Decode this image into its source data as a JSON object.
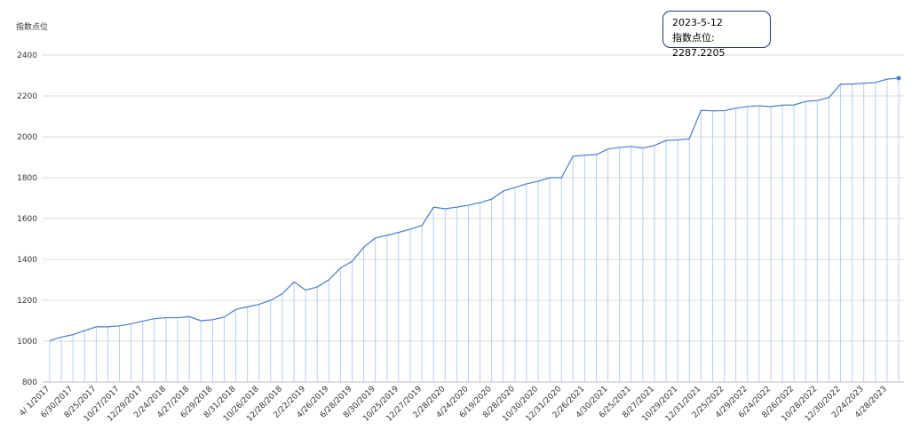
{
  "chart_data": {
    "type": "line",
    "y_label": "指数点位",
    "categories": [
      "4/ 1/2017",
      null,
      "6/30/2017",
      null,
      "8/25/2017",
      null,
      "10/27/2017",
      null,
      "12/29/2017",
      null,
      "2/24/2018",
      null,
      "4/27/2018",
      null,
      "6/29/2018",
      null,
      "8/31/2018",
      null,
      "10/26/2018",
      null,
      "12/28/2018",
      null,
      "2/22/2019",
      null,
      "4/26/2019",
      null,
      "6/28/2019",
      null,
      "8/30/2019",
      null,
      "10/25/2019",
      null,
      "12/27/2019",
      null,
      "2/28/2020",
      null,
      "4/24/2020",
      null,
      "6/19/2020",
      null,
      "8/28/2020",
      null,
      "10/30/2020",
      null,
      "12/31/2020",
      null,
      "2/26/2021",
      null,
      "4/30/2021",
      null,
      "6/25/2021",
      null,
      "8/27/2021",
      null,
      "10/29/2021",
      null,
      "12/31/2021",
      null,
      "2/25/2022",
      null,
      "4/29/2022",
      null,
      "6/24/2022",
      null,
      "8/26/2022",
      null,
      "10/28/2022",
      null,
      "12/30/2022",
      null,
      "2/24/2023",
      null,
      "4/28/2023",
      null
    ],
    "series": [
      {
        "color": "#4a7bc8",
        "values": [
          1003,
          1020,
          1032,
          1052,
          1070,
          1070,
          1075,
          1085,
          1098,
          1110,
          1115,
          1115,
          1120,
          1100,
          1105,
          1118,
          1155,
          1168,
          1180,
          1200,
          1232,
          1290,
          1250,
          1265,
          1300,
          1358,
          1390,
          1460,
          1505,
          1518,
          1532,
          1548,
          1566,
          1656,
          1648,
          1656,
          1665,
          1678,
          1695,
          1735,
          1752,
          1770,
          1783,
          1800,
          1800,
          1905,
          1910,
          1913,
          1940,
          1948,
          1953,
          1945,
          1958,
          1982,
          1985,
          1990,
          2130,
          2127,
          2128,
          2140,
          2148,
          2152,
          2148,
          2155,
          2156,
          2173,
          2178,
          2192,
          2258,
          2258,
          2262,
          2266,
          2282,
          2287.2205
        ]
      }
    ],
    "ylim": [
      800,
      2400
    ],
    "yticks": [
      800,
      1000,
      1200,
      1400,
      1600,
      1800,
      2000,
      2200,
      2400
    ],
    "grid": true,
    "tooltip": {
      "title": "2023-5-12",
      "text": "指数点位: 2287.2205"
    }
  }
}
